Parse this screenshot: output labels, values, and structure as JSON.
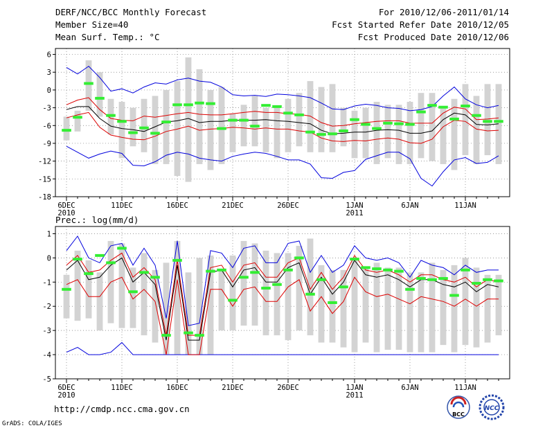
{
  "header": {
    "title": "DERF/NCC/BCC Monthly Forecast",
    "member_size": "Member Size=40",
    "variable": "Mean Surf. Temp.: °C",
    "period": "For 2010/12/06-2011/01/14",
    "start_date": "Fcst Started Refer Date 2010/12/05",
    "produced_date": "Fcst Produced Date 2010/12/06"
  },
  "footer": {
    "url": "http://cmdp.ncc.cma.gov.cn",
    "credit": "GrADS: COLA/IGES",
    "logo_bcc": "BCC",
    "logo_ncc": "NCC"
  },
  "colors": {
    "box": "#d3d3d3",
    "observed": "#33ee33",
    "mean": "#000000",
    "spread": "#dd0000",
    "extreme": "#0000dd"
  },
  "chart_data": [
    {
      "type": "box",
      "title": "Mean Surf. Temp.: °C",
      "x_tick_labels": [
        "6DEC",
        "11DEC",
        "16DEC",
        "21DEC",
        "26DEC",
        "1JAN",
        "6JAN",
        "11JAN"
      ],
      "x_tick_year_labels": [
        "2010",
        "",
        "",
        "",
        "",
        "2011",
        "",
        ""
      ],
      "x_tick_days": [
        1,
        6,
        11,
        16,
        21,
        27,
        32,
        37
      ],
      "days": 40,
      "ylim": [
        -18,
        7
      ],
      "yticks": [
        6,
        3,
        0,
        -3,
        -6,
        -9,
        -12,
        -15,
        -18
      ],
      "box_low": [
        -8.5,
        -7,
        -3.5,
        -4.5,
        -7.5,
        -11.5,
        -9.5,
        -10.5,
        -12.5,
        -12.5,
        -14.5,
        -15.5,
        -12.5,
        -13.5,
        -12.5,
        -10.5,
        -9.5,
        -9.5,
        -10.5,
        -11.5,
        -10.5,
        -9.5,
        -10.5,
        -10.5,
        -10.5,
        -9.5,
        -11.5,
        -11.5,
        -12.5,
        -11.5,
        -12.5,
        -12.5,
        -11.5,
        -12,
        -12.5,
        -13.5,
        -11,
        -12.5,
        -11,
        -12.5
      ],
      "box_high": [
        -4.5,
        -3.5,
        5,
        3,
        -1.5,
        -2,
        -3,
        -1.5,
        -1,
        0,
        1.5,
        5.5,
        3.5,
        0,
        0.5,
        -4,
        -2.5,
        -1,
        -3,
        -3,
        -1.5,
        -0.5,
        1.5,
        0.5,
        1,
        -3,
        -3.5,
        -3,
        -2,
        -2.5,
        -2.5,
        -2,
        -0.5,
        -0.5,
        -3,
        -1.5,
        1,
        -1,
        1,
        1
      ],
      "observed": [
        -6.8,
        -4.6,
        1.1,
        -1.4,
        -4.3,
        -5.3,
        -7.2,
        -6.4,
        -7.3,
        -5.4,
        -2.5,
        -2.5,
        -2.2,
        -2.3,
        -6.5,
        -5.1,
        -5.1,
        -6.1,
        -2.6,
        -2.8,
        -3.9,
        -4.2,
        -7.1,
        -7.5,
        -7.4,
        -6.9,
        -5,
        -5.8,
        -6.5,
        -5.6,
        -5.7,
        -5.8,
        -3.7,
        -2.6,
        -2.9,
        -4.9,
        -2.7,
        -4.3,
        -5.3,
        -5.3
      ],
      "mean": [
        -3.3,
        -2.8,
        -2.8,
        -4.8,
        -6.1,
        -6.5,
        -6.7,
        -7,
        -6.2,
        -5.4,
        -5.2,
        -4.8,
        -5.5,
        -5.3,
        -5.3,
        -5.1,
        -5.1,
        -5.1,
        -5,
        -5.2,
        -5.3,
        -5.5,
        -5.7,
        -6.8,
        -7.4,
        -7.3,
        -7.1,
        -7.1,
        -6.8,
        -6.7,
        -6.8,
        -7.3,
        -7.3,
        -6.9,
        -5,
        -3.9,
        -4.2,
        -5.8,
        -5.9,
        -5.7
      ],
      "spread_high": [
        -2.5,
        -1.7,
        -1.3,
        -3.3,
        -4.8,
        -5.1,
        -5.2,
        -4.4,
        -4.6,
        -4.3,
        -4,
        -3.8,
        -4.1,
        -4.2,
        -4.2,
        -4,
        -3.8,
        -3.6,
        -3.8,
        -3.8,
        -4,
        -4.1,
        -4.4,
        -5.5,
        -6.1,
        -6,
        -5.7,
        -5.5,
        -5.3,
        -5.2,
        -5.2,
        -5.6,
        -5.6,
        -5.6,
        -3.9,
        -2.9,
        -3.2,
        -5,
        -4.9,
        -4.7
      ],
      "spread_low": [
        -4.7,
        -4.2,
        -3.8,
        -6.3,
        -7.6,
        -8,
        -8.3,
        -8.4,
        -7.8,
        -7,
        -6.6,
        -6.1,
        -6.8,
        -6.6,
        -6.5,
        -6.3,
        -6.4,
        -6.6,
        -6.4,
        -6.6,
        -6.6,
        -6.9,
        -7.1,
        -8.1,
        -8.6,
        -8.7,
        -8.5,
        -8.6,
        -8.3,
        -8.1,
        -8.3,
        -8.9,
        -9,
        -8.3,
        -6.2,
        -5.1,
        -5.3,
        -6.6,
        -6.9,
        -6.8
      ],
      "extreme_high": [
        3.8,
        2.7,
        4,
        2.1,
        -0.2,
        0.2,
        -0.5,
        0.5,
        1.2,
        1,
        1.7,
        2,
        1.5,
        1.3,
        0.5,
        -0.8,
        -1,
        -0.9,
        -1.1,
        -0.7,
        -0.8,
        -1,
        -1.3,
        -2.2,
        -3.2,
        -3.3,
        -2.7,
        -2.4,
        -2.6,
        -3,
        -3.1,
        -3.5,
        -3.3,
        -2.8,
        -1,
        0.5,
        -1.5,
        -2.5,
        -3,
        -2.6
      ],
      "extreme_low": [
        -9.5,
        -10.5,
        -11.5,
        -10.8,
        -10.3,
        -10.7,
        -12.7,
        -12.8,
        -12.1,
        -11,
        -10.5,
        -10.8,
        -11.5,
        -11.8,
        -12,
        -11.2,
        -10.8,
        -10.5,
        -10.7,
        -11.2,
        -11.8,
        -11.8,
        -12.5,
        -14.8,
        -14.9,
        -13.9,
        -13.6,
        -11.7,
        -11.1,
        -10.5,
        -10.5,
        -11.6,
        -14.9,
        -16.2,
        -13.8,
        -11.8,
        -11.4,
        -12.4,
        -12.2,
        -11.1
      ]
    },
    {
      "type": "box",
      "title": "Prec.: log(mm/d)",
      "x_tick_labels": [
        "6DEC",
        "11DEC",
        "16DEC",
        "21DEC",
        "26DEC",
        "1JAN",
        "6JAN",
        "11JAN"
      ],
      "x_tick_year_labels": [
        "2010",
        "",
        "",
        "",
        "",
        "2011",
        "",
        ""
      ],
      "x_tick_days": [
        1,
        6,
        11,
        16,
        21,
        27,
        32,
        37
      ],
      "days": 40,
      "ylim": [
        -5,
        1.3
      ],
      "yticks": [
        1,
        0,
        -1,
        -2,
        -3,
        -4,
        -5
      ],
      "box_low": [
        -2.5,
        -2.6,
        -2.5,
        -3,
        -2.7,
        -2.9,
        -2.9,
        -3.2,
        -3.5,
        -4,
        -4,
        -4,
        -4,
        -4,
        -3,
        -3,
        -2.8,
        -2.8,
        -3.2,
        -3.2,
        -3.4,
        -3,
        -3.2,
        -3.5,
        -3.5,
        -3.7,
        -3.9,
        -3.5,
        -3.9,
        -3.8,
        -3.8,
        -3.9,
        -3.9,
        -3.9,
        -3.6,
        -3.9,
        -3.6,
        -3.7,
        -3.5,
        -3.2
      ],
      "box_high": [
        -0.7,
        0.3,
        -0.1,
        -0.6,
        0.7,
        0.6,
        -0.4,
        0.2,
        -0.5,
        -0.2,
        0.7,
        -0.6,
        0,
        0.1,
        -0.5,
        0.1,
        0.7,
        0.6,
        0.3,
        0.2,
        0.2,
        0.5,
        0.8,
        -0.3,
        -0.5,
        -0.5,
        -0.1,
        -0.4,
        -0.2,
        -0.4,
        -0.4,
        -0.6,
        -0.6,
        -0.2,
        -0.5,
        -0.3,
        0,
        -0.4,
        -0.7,
        -0.7
      ],
      "observed": [
        -1.3,
        -0.05,
        -0.65,
        0.1,
        -0.2,
        0.4,
        -1.4,
        -0.6,
        -0.8,
        -3.2,
        -0.1,
        -3.1,
        -3.2,
        -0.55,
        -0.5,
        -1.75,
        -0.8,
        -0.6,
        -1.25,
        -1.1,
        -0.5,
        0,
        -1.5,
        -0.9,
        -1.85,
        -1.2,
        -0.05,
        -0.4,
        -0.45,
        -0.5,
        -0.55,
        -1.3,
        -0.85,
        -0.9,
        -0.85,
        -1.55,
        -0.5,
        -1.05,
        -0.9,
        -0.95
      ],
      "mean": [
        -0.5,
        -0.1,
        -0.9,
        -0.8,
        -0.3,
        0,
        -1,
        -0.6,
        -1.1,
        -3.4,
        -0.3,
        -3.4,
        -3.4,
        -0.6,
        -0.5,
        -1.2,
        -0.5,
        -0.4,
        -1,
        -1,
        -0.4,
        -0.2,
        -1.5,
        -0.8,
        -1.5,
        -1,
        -0.1,
        -0.7,
        -0.8,
        -0.7,
        -0.9,
        -1.2,
        -0.9,
        -0.9,
        -1.1,
        -1.2,
        -1,
        -1.4,
        -1.1,
        -1.2
      ],
      "spread_high": [
        -0.3,
        0.1,
        -0.6,
        -0.5,
        -0.1,
        0.2,
        -0.8,
        -0.4,
        -0.9,
        -3.2,
        -0.1,
        -3.2,
        -3.2,
        -0.4,
        -0.3,
        -1,
        -0.3,
        -0.2,
        -0.8,
        -0.8,
        -0.2,
        0,
        -1.3,
        -0.6,
        -1.3,
        -0.8,
        0.1,
        -0.5,
        -0.6,
        -0.5,
        -0.7,
        -1,
        -0.7,
        -0.7,
        -0.9,
        -1,
        -0.8,
        -1.2,
        -0.9,
        -1
      ],
      "spread_low": [
        -1.1,
        -0.9,
        -1.6,
        -1.6,
        -1,
        -0.8,
        -1.7,
        -1.3,
        -1.8,
        -4,
        -0.9,
        -4,
        -4,
        -1.3,
        -1.3,
        -2,
        -1.3,
        -1.2,
        -1.8,
        -1.8,
        -1.2,
        -0.9,
        -2.2,
        -1.6,
        -2.3,
        -1.8,
        -0.8,
        -1.4,
        -1.6,
        -1.5,
        -1.7,
        -1.9,
        -1.6,
        -1.7,
        -1.8,
        -2,
        -1.7,
        -2,
        -1.7,
        -1.7
      ],
      "extreme_high": [
        0.3,
        0.9,
        0,
        -0.2,
        0.5,
        0.6,
        -0.3,
        0.4,
        -0.3,
        -2.5,
        0.7,
        -2.8,
        -2.7,
        0.3,
        0.2,
        -0.4,
        0.4,
        0.5,
        -0.2,
        -0.2,
        0.6,
        0.7,
        -0.6,
        0.1,
        -0.6,
        -0.3,
        0.5,
        0,
        -0.1,
        0,
        -0.2,
        -0.8,
        -0.1,
        -0.3,
        -0.4,
        -0.7,
        -0.3,
        -0.6,
        -0.5,
        -0.5
      ],
      "extreme_low": [
        -3.9,
        -3.7,
        -4,
        -4,
        -3.9,
        -3.5,
        -4,
        -4,
        -4,
        -4,
        -4,
        -4,
        -4,
        -4,
        -4,
        -4,
        -4,
        -4,
        -4,
        -4,
        -4,
        -4,
        -4,
        -4,
        -4,
        -4,
        -4,
        -4,
        -4,
        -4,
        -4,
        -4,
        -4,
        -4,
        -4,
        -4,
        -4,
        -4,
        -4,
        -4
      ]
    }
  ],
  "panel_labels": {
    "upper": "",
    "lower": "Prec.: log(mm/d)"
  }
}
